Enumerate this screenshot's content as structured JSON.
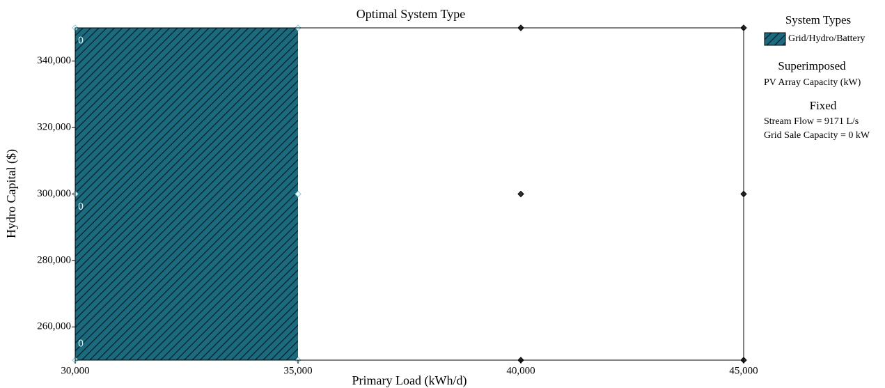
{
  "chart_data": {
    "type": "region",
    "title": "Optimal System Type",
    "x_label": "Primary Load (kWh/d)",
    "y_label": "Hydro Capital ($)",
    "xlim": [
      30000,
      45000
    ],
    "ylim": [
      250000,
      350000
    ],
    "xticks": [
      {
        "value": 30000,
        "label": "30,000"
      },
      {
        "value": 35000,
        "label": "35,000"
      },
      {
        "value": 40000,
        "label": "40,000"
      },
      {
        "value": 45000,
        "label": "45,000"
      }
    ],
    "yticks": [
      {
        "value": 260000,
        "label": "260,000"
      },
      {
        "value": 280000,
        "label": "280,000"
      },
      {
        "value": 300000,
        "label": "300,000"
      },
      {
        "value": 320000,
        "label": "320,000"
      },
      {
        "value": 340000,
        "label": "340,000"
      }
    ],
    "regions": [
      {
        "name": "Grid/Hydro/Battery",
        "color": "#1c6a7e",
        "x": [
          30000,
          35000
        ]
      }
    ],
    "points": {
      "x": [
        30000,
        30000,
        30000,
        35000,
        35000,
        35000,
        40000,
        40000,
        40000,
        45000,
        45000,
        45000
      ],
      "y": [
        250000,
        300000,
        350000,
        250000,
        300000,
        350000,
        250000,
        300000,
        350000,
        250000,
        300000,
        350000
      ]
    },
    "superimposed": {
      "x": [
        30000,
        30000,
        30000
      ],
      "y": [
        350000,
        300000,
        250000
      ],
      "values": [
        0,
        0,
        0
      ]
    },
    "legend": {
      "title": "System Types",
      "superimposed_title": "Superimposed",
      "superimposed_variable": "PV Array Capacity (kW)",
      "fixed_title": "Fixed",
      "fixed_items": [
        "Stream Flow = 9171 L/s",
        "Grid Sale Capacity = 0 kW"
      ]
    }
  }
}
